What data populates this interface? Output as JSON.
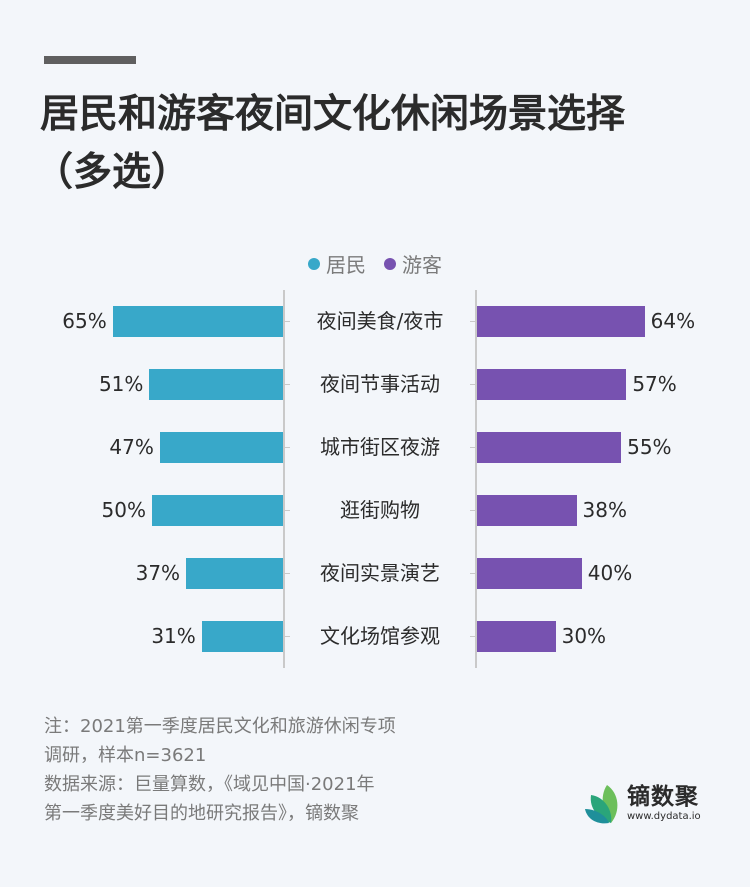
{
  "header": {
    "title_line1": "居民和游客夜间文化休闲场景选择",
    "title_line2": "（多选）"
  },
  "legend": [
    {
      "label": "居民",
      "color": "#38a8c9"
    },
    {
      "label": "游客",
      "color": "#7752b0"
    }
  ],
  "chart_data": {
    "type": "bar",
    "orientation": "horizontal-butterfly",
    "title": "居民和游客夜间文化休闲场景选择（多选）",
    "categories": [
      "夜间美食/夜市",
      "夜间节事活动",
      "城市街区夜游",
      "逛街购物",
      "夜间实景演艺",
      "文化场馆参观"
    ],
    "series": [
      {
        "name": "居民",
        "color": "#38a8c9",
        "values": [
          65,
          51,
          47,
          50,
          37,
          31
        ],
        "labels": [
          "65%",
          "51%",
          "47%",
          "50%",
          "37%",
          "31%"
        ],
        "side": "left"
      },
      {
        "name": "游客",
        "color": "#7752b0",
        "values": [
          64,
          57,
          55,
          38,
          40,
          30
        ],
        "labels": [
          "64%",
          "57%",
          "55%",
          "38%",
          "40%",
          "30%"
        ],
        "side": "right"
      }
    ],
    "xlabel": "",
    "ylabel": "",
    "unit": "%",
    "legend_position": "top-center",
    "grid": false
  },
  "notes": {
    "line1": "注：2021第一季度居民文化和旅游休闲专项",
    "line2": "调研，样本n=3621",
    "line3": "数据来源：巨量算数，《域见中国·2021年",
    "line4": "第一季度美好目的地研究报告》，镝数聚"
  },
  "logo": {
    "name": "镝数聚",
    "url": "www.dydata.io"
  }
}
